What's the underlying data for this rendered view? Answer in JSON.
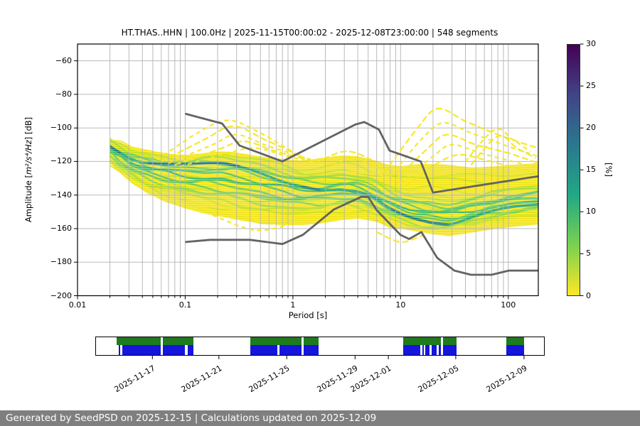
{
  "title": "HT.THAS..HHN | 100.0Hz | 2025-11-15T00:00:02 - 2025-12-08T23:00:00 | 548 segments",
  "axes": {
    "xlabel": "Period [s]",
    "ylabel_prefix": "Amplitude [",
    "ylabel_math": "m²/s⁴/Hz",
    "ylabel_suffix": "] [dB]",
    "xtick_values": [
      0.01,
      0.1,
      1,
      10,
      100
    ],
    "xtick_labels": [
      "0.01",
      "0.1",
      "1",
      "10",
      "100"
    ],
    "ytick_values": [
      -60,
      -80,
      -100,
      -120,
      -140,
      -160,
      -180,
      -200
    ],
    "ytick_labels": [
      "−60",
      "−80",
      "−100",
      "−120",
      "−140",
      "−160",
      "−180",
      "−200"
    ],
    "xlim": [
      0.01,
      190
    ],
    "ylim": [
      -200,
      -50
    ],
    "grid_color": "#b2b2b2"
  },
  "colorbar": {
    "label": "[%]",
    "tick_values": [
      0,
      5,
      10,
      15,
      20,
      25,
      30
    ],
    "tick_labels": [
      "0",
      "5",
      "10",
      "15",
      "20",
      "25",
      "30"
    ],
    "min": 0,
    "max": 30,
    "gradient_stops": [
      [
        "0",
        "#fde725"
      ],
      [
        "0.2",
        "#7ad151"
      ],
      [
        "0.4",
        "#22a884"
      ],
      [
        "0.6",
        "#2a788e"
      ],
      [
        "0.8",
        "#414487"
      ],
      [
        "1",
        "#440154"
      ]
    ]
  },
  "chart_data": {
    "type": "heatmap",
    "subtype": "ppsd-spectral-density",
    "title": "HT.THAS..HHN | 100.0Hz | 2025-11-15T00:00:02 - 2025-12-08T23:00:00 | 548 segments",
    "xlabel": "Period [s]",
    "ylabel": "Amplitude [m²/s⁴/Hz] [dB]",
    "xscale": "log",
    "xlim": [
      0.01,
      190
    ],
    "ylim": [
      -200,
      -50
    ],
    "colorbar_label": "[%]",
    "colorbar_range": [
      0,
      30
    ],
    "periods": [
      0.02,
      0.025,
      0.032,
      0.045,
      0.065,
      0.1,
      0.15,
      0.22,
      0.32,
      0.5,
      0.8,
      1.2,
      1.8,
      2.8,
      4,
      5.5,
      8,
      12,
      18,
      28,
      45,
      70,
      110,
      190
    ],
    "band": {
      "top": [
        -107,
        -109,
        -111,
        -113,
        -115,
        -116,
        -115,
        -114,
        -115,
        -117,
        -118.5,
        -119.5,
        -118,
        -116.5,
        -117,
        -119,
        -122,
        -122.5,
        -121.5,
        -122,
        -123.5,
        -123,
        -122,
        -121
      ],
      "bottom": [
        -121,
        -127,
        -133,
        -139,
        -144,
        -148,
        -151,
        -153,
        -155,
        -157,
        -158,
        -158,
        -157,
        -155,
        -154,
        -155.5,
        -158.5,
        -161,
        -163,
        -164.5,
        -162.5,
        -160.5,
        -159,
        -157.5
      ],
      "green_top": [
        -108.5,
        -111,
        -114,
        -116,
        -117.5,
        -118,
        -117,
        -116.5,
        -117.5,
        -120,
        -123.5,
        -126.5,
        -128,
        -127,
        -128,
        -131,
        -137,
        -141,
        -142.5,
        -143.5,
        -141,
        -138.5,
        -136.5,
        -134.5
      ],
      "green_bottom": [
        -118,
        -123.5,
        -128.5,
        -133.5,
        -137,
        -139.5,
        -141.5,
        -143,
        -145,
        -147,
        -148.5,
        -149,
        -148,
        -146.5,
        -147,
        -149.5,
        -153.5,
        -157,
        -159,
        -160,
        -157.5,
        -154.5,
        -152.5,
        -150.5
      ],
      "mode": [
        -111,
        -115,
        -119,
        -121,
        -121.5,
        -121.5,
        -121,
        -121,
        -123,
        -127,
        -132,
        -135,
        -137,
        -137,
        -138,
        -141,
        -148,
        -153,
        -156,
        -157.5,
        -153.5,
        -149.5,
        -147,
        -145.5
      ],
      "dark_mode_ranges": [
        [
          0.02,
          0.028
        ],
        [
          0.04,
          0.33
        ],
        [
          1.0,
          2.0
        ],
        [
          8,
          32
        ]
      ]
    },
    "noise_models": {
      "high": [
        [
          0.1,
          -91.5
        ],
        [
          0.22,
          -97.4
        ],
        [
          0.32,
          -110.5
        ],
        [
          0.8,
          -120
        ],
        [
          3.8,
          -98
        ],
        [
          4.6,
          -96.5
        ],
        [
          6.3,
          -101
        ],
        [
          7.9,
          -113.5
        ],
        [
          15.4,
          -120
        ],
        [
          20,
          -138.5
        ],
        [
          190,
          -128.8
        ]
      ],
      "low": [
        [
          0.1,
          -168
        ],
        [
          0.17,
          -166.7
        ],
        [
          0.4,
          -166.7
        ],
        [
          0.8,
          -169.2
        ],
        [
          1.24,
          -163.7
        ],
        [
          2.4,
          -148.6
        ],
        [
          4.3,
          -141.1
        ],
        [
          5,
          -141.1
        ],
        [
          6,
          -149
        ],
        [
          10,
          -163.8
        ],
        [
          12,
          -166.2
        ],
        [
          15.6,
          -162.1
        ],
        [
          21.9,
          -177.5
        ],
        [
          31.6,
          -185
        ],
        [
          45,
          -187.5
        ],
        [
          70,
          -187.5
        ],
        [
          101,
          -185
        ],
        [
          190,
          -185
        ]
      ]
    },
    "outlier_curves": [
      [
        [
          0.055,
          -119
        ],
        [
          0.13,
          -103
        ],
        [
          0.25,
          -95.5
        ],
        [
          0.5,
          -103
        ],
        [
          1.1,
          -116
        ]
      ],
      [
        [
          0.06,
          -120
        ],
        [
          0.15,
          -107
        ],
        [
          0.28,
          -99
        ],
        [
          0.55,
          -107
        ],
        [
          1.3,
          -118
        ]
      ],
      [
        [
          0.07,
          -121
        ],
        [
          0.18,
          -110
        ],
        [
          0.3,
          -104
        ],
        [
          0.6,
          -111
        ],
        [
          1.5,
          -119
        ]
      ],
      [
        [
          0.08,
          -122
        ],
        [
          0.2,
          -113
        ],
        [
          0.35,
          -108
        ],
        [
          0.7,
          -114
        ],
        [
          1.6,
          -120
        ]
      ],
      [
        [
          0.09,
          -123
        ],
        [
          0.25,
          -115
        ],
        [
          0.45,
          -112
        ],
        [
          0.9,
          -117
        ],
        [
          1.8,
          -121
        ]
      ],
      [
        [
          1.6,
          -121
        ],
        [
          3.0,
          -114
        ],
        [
          5.0,
          -118
        ],
        [
          7.0,
          -125
        ]
      ],
      [
        [
          2.0,
          -124
        ],
        [
          3.5,
          -118
        ],
        [
          5.5,
          -122
        ],
        [
          8.0,
          -128
        ]
      ],
      [
        [
          7,
          -127
        ],
        [
          14,
          -101
        ],
        [
          22,
          -88.5
        ],
        [
          40,
          -96
        ],
        [
          80,
          -104
        ],
        [
          150,
          -110
        ],
        [
          190,
          -112
        ]
      ],
      [
        [
          8,
          -129
        ],
        [
          16,
          -106
        ],
        [
          25,
          -97
        ],
        [
          45,
          -103
        ],
        [
          90,
          -110
        ],
        [
          190,
          -117
        ]
      ],
      [
        [
          9,
          -131
        ],
        [
          18,
          -112
        ],
        [
          27,
          -104
        ],
        [
          50,
          -110
        ],
        [
          100,
          -115
        ],
        [
          190,
          -121
        ]
      ],
      [
        [
          10,
          -133
        ],
        [
          20,
          -117
        ],
        [
          30,
          -110
        ],
        [
          55,
          -115
        ],
        [
          110,
          -120
        ],
        [
          190,
          -124
        ]
      ],
      [
        [
          11,
          -135
        ],
        [
          22,
          -121
        ],
        [
          35,
          -116
        ],
        [
          60,
          -119
        ],
        [
          120,
          -124
        ],
        [
          190,
          -127
        ]
      ],
      [
        [
          40,
          -120
        ],
        [
          75,
          -101
        ],
        [
          110,
          -107
        ],
        [
          160,
          -114
        ]
      ],
      [
        [
          45,
          -122
        ],
        [
          80,
          -105
        ],
        [
          120,
          -112
        ],
        [
          180,
          -118
        ]
      ],
      [
        [
          0.18,
          -152
        ],
        [
          0.45,
          -161
        ],
        [
          1.0,
          -157
        ]
      ],
      [
        [
          6,
          -162
        ],
        [
          10,
          -168
        ],
        [
          16,
          -164
        ]
      ]
    ],
    "colors": {
      "band_fill": "#f4e625",
      "yellow_curves": [
        "#f6e726",
        "#eae51e",
        "#d5e21f",
        "#c4df23"
      ],
      "green_curves": [
        "#bddf26",
        "#9fda3a",
        "#7fd34e",
        "#5ec962",
        "#44bf70",
        "#31b57b"
      ],
      "mode_line": "#24a57f",
      "mode_dark": "#2a788e",
      "outlier": "#f5e71d",
      "noise_model": "#636363"
    }
  },
  "timeline": {
    "green_color": "#1e7b1e",
    "blue_color": "#1515dc",
    "green_spans": [
      [
        0.046,
        0.144
      ],
      [
        0.149,
        0.217
      ],
      [
        0.345,
        0.458
      ],
      [
        0.463,
        0.497
      ],
      [
        0.685,
        0.77
      ],
      [
        0.774,
        0.804
      ],
      [
        0.916,
        0.956
      ]
    ],
    "blue_spans": [
      [
        0.05,
        0.0545
      ],
      [
        0.058,
        0.144
      ],
      [
        0.149,
        0.199
      ],
      [
        0.204,
        0.217
      ],
      [
        0.345,
        0.405
      ],
      [
        0.41,
        0.458
      ],
      [
        0.463,
        0.497
      ],
      [
        0.685,
        0.724
      ],
      [
        0.728,
        0.731
      ],
      [
        0.735,
        0.745
      ],
      [
        0.749,
        0.761
      ],
      [
        0.765,
        0.77
      ],
      [
        0.774,
        0.804
      ],
      [
        0.916,
        0.956
      ]
    ],
    "ticks": [
      {
        "f": 0.127,
        "label": "2025-11-17"
      },
      {
        "f": 0.275,
        "label": "2025-11-21"
      },
      {
        "f": 0.426,
        "label": "2025-11-25"
      },
      {
        "f": 0.578,
        "label": "2025-11-29"
      },
      {
        "f": 0.652,
        "label": "2025-12-01"
      },
      {
        "f": 0.802,
        "label": "2025-12-05"
      },
      {
        "f": 0.954,
        "label": "2025-12-09"
      }
    ]
  },
  "footer": {
    "text": "Generated by SeedPSD on 2025-12-15 | Calculations updated on 2025-12-09",
    "bg_color": "#7f7f7f"
  }
}
